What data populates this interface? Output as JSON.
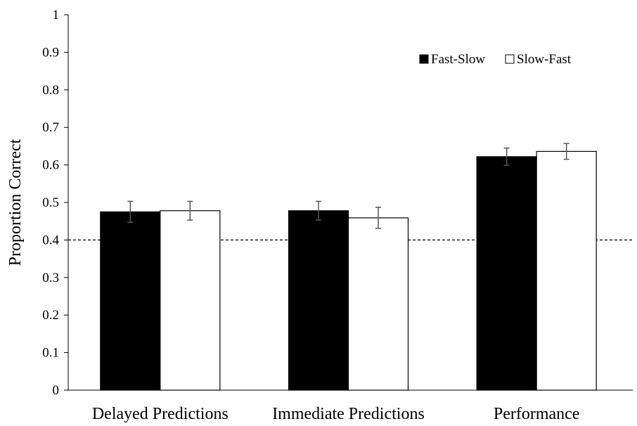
{
  "chart_data": {
    "type": "bar",
    "ylabel": "Proportion Correct",
    "ylim": [
      0,
      1
    ],
    "yticks": [
      "0",
      "0.1",
      "0.2",
      "0.3",
      "0.4",
      "0.5",
      "0.6",
      "0.7",
      "0.8",
      "0.9",
      "1"
    ],
    "categories": [
      "Delayed Predictions",
      "Immediate Predictions",
      "Performance"
    ],
    "series": [
      {
        "name": "Fast-Slow",
        "fill": "#000000",
        "values": [
          0.475,
          0.478,
          0.622
        ],
        "errors": [
          0.028,
          0.025,
          0.023
        ]
      },
      {
        "name": "Slow-Fast",
        "fill": "#ffffff",
        "values": [
          0.478,
          0.459,
          0.636
        ],
        "errors": [
          0.025,
          0.028,
          0.021
        ]
      }
    ],
    "reference_line": {
      "y": 0.4,
      "style": "dashed"
    },
    "legend": {
      "position": "top-right"
    },
    "grid": false
  }
}
